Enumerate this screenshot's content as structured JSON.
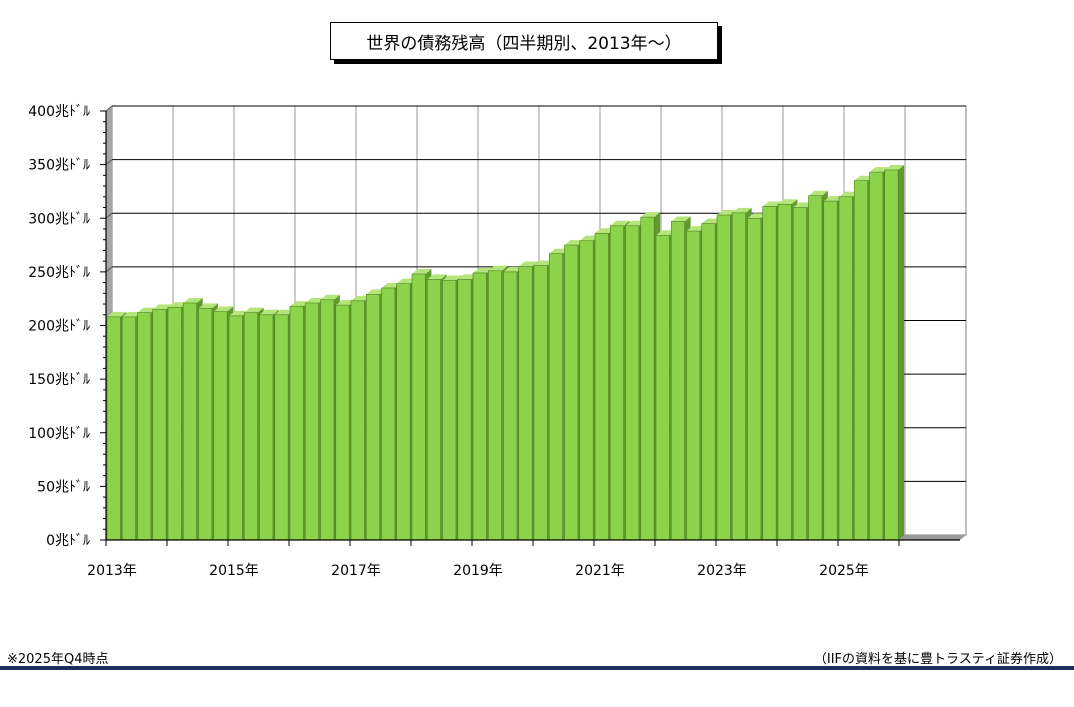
{
  "chart_data": {
    "type": "bar",
    "title": "世界の債務残高（四半期別、2013年～）",
    "y_unit": "兆ﾄﾞﾙ",
    "ylim": [
      0,
      400
    ],
    "y_ticks": [
      0,
      50,
      100,
      150,
      200,
      250,
      300,
      350,
      400
    ],
    "y_tick_labels": [
      "0兆ﾄﾞﾙ",
      "50兆ﾄﾞﾙ",
      "100兆ﾄﾞﾙ",
      "150兆ﾄﾞﾙ",
      "200兆ﾄﾞﾙ",
      "250兆ﾄﾞﾙ",
      "300兆ﾄﾞﾙ",
      "350兆ﾄﾞﾙ",
      "400兆ﾄﾞﾙ"
    ],
    "x_tick_labels": [
      "2013年",
      "2015年",
      "2017年",
      "2019年",
      "2021年",
      "2023年",
      "2025年"
    ],
    "x_tick_years": [
      2013,
      2015,
      2017,
      2019,
      2021,
      2023,
      2025
    ],
    "x_range_years": [
      2013,
      2027
    ],
    "grid": true,
    "bar_color": "#8cd24a",
    "period_labels": [
      "2013Q1",
      "2013Q2",
      "2013Q3",
      "2013Q4",
      "2014Q1",
      "2014Q2",
      "2014Q3",
      "2014Q4",
      "2015Q1",
      "2015Q2",
      "2015Q3",
      "2015Q4",
      "2016Q1",
      "2016Q2",
      "2016Q3",
      "2016Q4",
      "2017Q1",
      "2017Q2",
      "2017Q3",
      "2017Q4",
      "2018Q1",
      "2018Q2",
      "2018Q3",
      "2018Q4",
      "2019Q1",
      "2019Q2",
      "2019Q3",
      "2019Q4",
      "2020Q1",
      "2020Q2",
      "2020Q3",
      "2020Q4",
      "2021Q1",
      "2021Q2",
      "2021Q3",
      "2021Q4",
      "2022Q1",
      "2022Q2",
      "2022Q3",
      "2022Q4",
      "2023Q1",
      "2023Q2",
      "2023Q3",
      "2023Q4",
      "2024Q1",
      "2024Q2",
      "2024Q3",
      "2024Q4",
      "2025Q1",
      "2025Q2",
      "2025Q3",
      "2025Q4"
    ],
    "values": [
      208,
      208,
      212,
      215,
      217,
      221,
      216,
      213,
      209,
      212,
      210,
      210,
      218,
      221,
      224,
      219,
      223,
      229,
      235,
      239,
      248,
      243,
      242,
      243,
      249,
      251,
      250,
      255,
      256,
      267,
      275,
      279,
      286,
      293,
      293,
      301,
      284,
      297,
      288,
      295,
      303,
      305,
      300,
      311,
      313,
      310,
      321,
      316,
      320,
      335,
      343,
      345
    ]
  },
  "footnote": "※2025年Q4時点",
  "source": "（IIFの資料を基に豊トラスティ証券作成）"
}
